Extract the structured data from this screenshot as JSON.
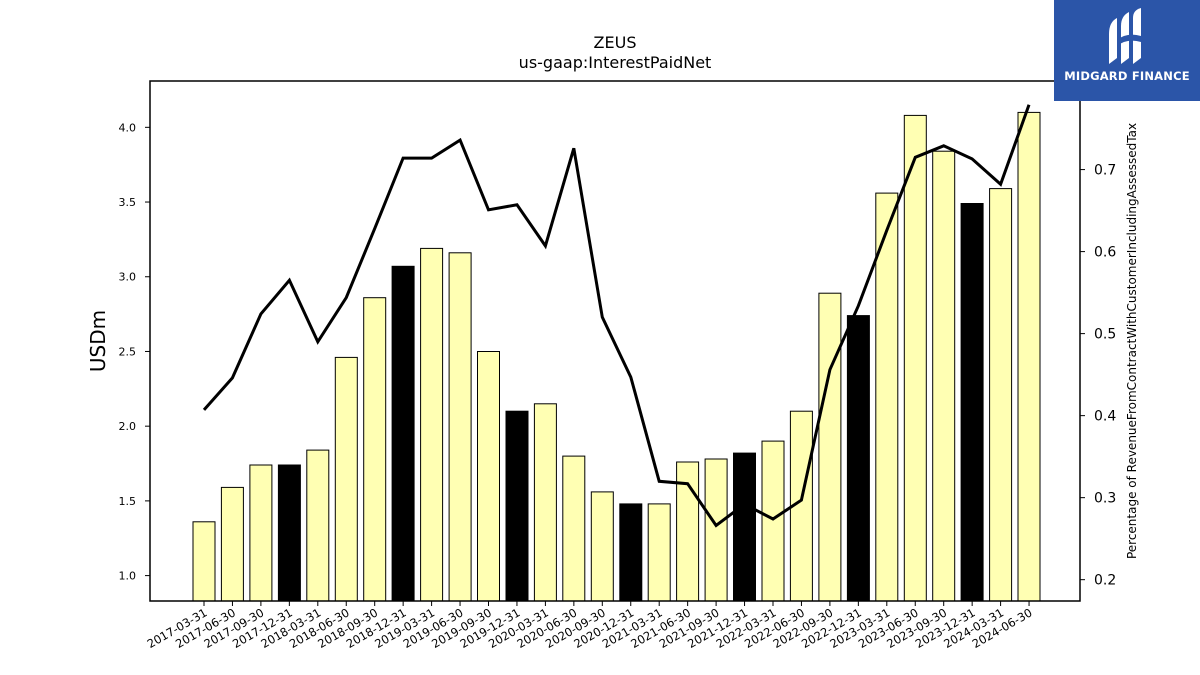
{
  "chart_data": {
    "type": "bar",
    "title": "ZEUS",
    "subtitle": "us-gaap:InterestPaidNet",
    "ylabel": "USDm",
    "ylabel_right": "Percentage of RevenueFromContractWithCustomerIncludingAssessedTax",
    "ylim": [
      0.83,
      4.31
    ],
    "ylim_right": [
      0.174,
      0.808
    ],
    "yticks": [
      "1.0",
      "1.5",
      "2.0",
      "2.5",
      "3.0",
      "3.5",
      "4.0"
    ],
    "yticks_right": [
      "0.2",
      "0.3",
      "0.4",
      "0.5",
      "0.6",
      "0.7"
    ],
    "grid": false,
    "categories": [
      "2017-03-31",
      "2017-06-30",
      "2017-09-30",
      "2017-12-31",
      "2018-03-31",
      "2018-06-30",
      "2018-09-30",
      "2018-12-31",
      "2019-03-31",
      "2019-06-30",
      "2019-09-30",
      "2019-12-31",
      "2020-03-31",
      "2020-06-30",
      "2020-09-30",
      "2020-12-31",
      "2021-03-31",
      "2021-06-30",
      "2021-09-30",
      "2021-12-31",
      "2022-03-31",
      "2022-06-30",
      "2022-09-30",
      "2022-12-31",
      "2023-03-31",
      "2023-06-30",
      "2023-09-30",
      "2023-12-31",
      "2024-03-31",
      "2024-06-30"
    ],
    "values": [
      1.36,
      1.59,
      1.74,
      1.74,
      1.84,
      2.46,
      2.86,
      3.07,
      3.19,
      3.16,
      2.5,
      2.1,
      2.15,
      1.8,
      1.56,
      1.48,
      1.48,
      1.76,
      1.78,
      1.82,
      1.9,
      2.1,
      2.89,
      2.74,
      3.56,
      4.08,
      3.84,
      3.49,
      3.59,
      4.1
    ],
    "highlighted": [
      false,
      false,
      false,
      true,
      false,
      false,
      false,
      true,
      false,
      false,
      false,
      true,
      false,
      false,
      false,
      true,
      false,
      false,
      false,
      true,
      false,
      false,
      false,
      true,
      false,
      false,
      false,
      true,
      false,
      false
    ],
    "line_values": [
      0.407,
      0.446,
      0.524,
      0.565,
      0.49,
      0.544,
      0.628,
      0.714,
      0.714,
      0.736,
      0.651,
      0.657,
      0.607,
      0.726,
      0.52,
      0.447,
      0.32,
      0.317,
      0.266,
      0.292,
      0.274,
      0.297,
      0.456,
      0.534,
      0.626,
      0.715,
      0.729,
      0.713,
      0.682,
      0.779
    ],
    "colors": {
      "bar": "#ffffb3",
      "bar_highlight": "#000000",
      "bar_edge": "#000000",
      "line": "#000000"
    }
  },
  "logo": {
    "text": "MIDGARD FINANCE",
    "background": "#2b55a8"
  }
}
